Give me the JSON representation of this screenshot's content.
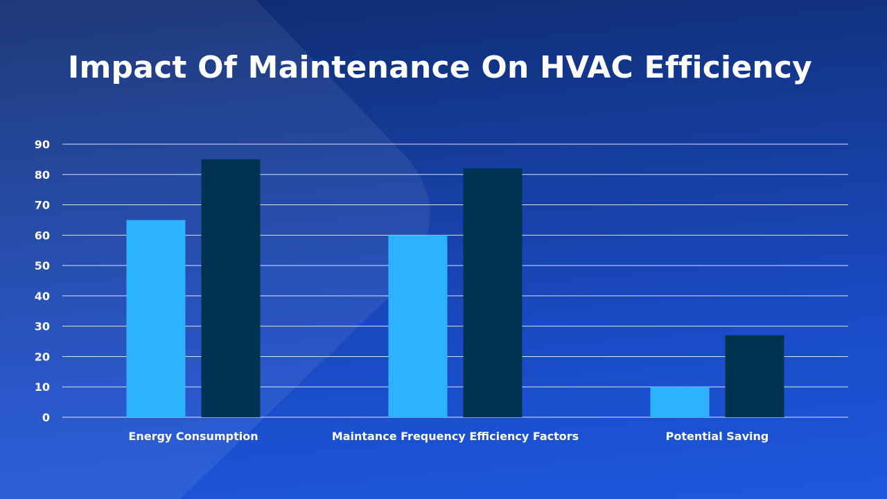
{
  "chart_data": {
    "type": "bar",
    "title": "Impact Of Maintenance On HVAC Efficiency",
    "categories": [
      "Energy Consumption",
      "Maintance Frequency Efficiency Factors",
      "Potential Saving"
    ],
    "series": [
      {
        "values": [
          65,
          60,
          10
        ],
        "color": "#2db3fd"
      },
      {
        "values": [
          85,
          82,
          27
        ],
        "color": "#003352"
      }
    ],
    "ylim": [
      0,
      90
    ],
    "yticks": [
      0,
      10,
      20,
      30,
      40,
      50,
      60,
      70,
      80,
      90
    ],
    "grid": true,
    "legend": "none"
  },
  "colors": {
    "gridline": "#ffffff",
    "text": "#ffffff"
  }
}
